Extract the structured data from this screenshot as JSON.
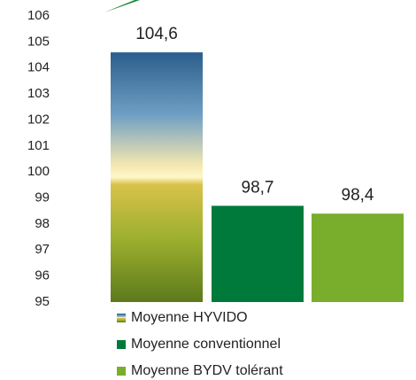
{
  "chart_data": {
    "type": "bar",
    "series": [
      {
        "name": "Moyenne HYVIDO",
        "values": [
          104.6
        ],
        "value_labels": [
          "104,6"
        ]
      },
      {
        "name": "Moyenne conventionnel",
        "color": "#007a3a",
        "values": [
          98.7
        ],
        "value_labels": [
          "98,7"
        ]
      },
      {
        "name": "Moyenne BYDV tolérant",
        "color": "#79ad2c",
        "values": [
          98.4
        ],
        "value_labels": [
          "98,4"
        ]
      }
    ],
    "ylim": [
      95,
      106
    ],
    "yticks": [
      95,
      96,
      97,
      98,
      99,
      100,
      101,
      102,
      103,
      104,
      105,
      106
    ],
    "grid": false
  }
}
